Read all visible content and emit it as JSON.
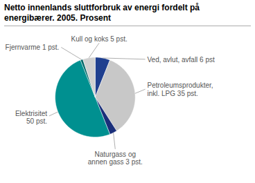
{
  "chart_data": {
    "type": "pie",
    "title": "Netto innenlands sluttforbruk av energi fordelt på\nenergibærer. 2005. Prosent",
    "categories": [
      "Ved, avlut, avfall 6 pst",
      "Petroleumsprodukter,\ninkl. LPG 35 pst.",
      "Naturgass og\nannen gass 3 pst.",
      "Elektrisitet\n50 pst.",
      "Fjernvarme 1 pst.",
      "Kull og koks 5 pst."
    ],
    "values": [
      6,
      35,
      3,
      50,
      1,
      5
    ],
    "colors": [
      "#1f3f8f",
      "#c8c8c8",
      "#1a2f7a",
      "#009090",
      "#006868",
      "#d0d0d0"
    ]
  }
}
